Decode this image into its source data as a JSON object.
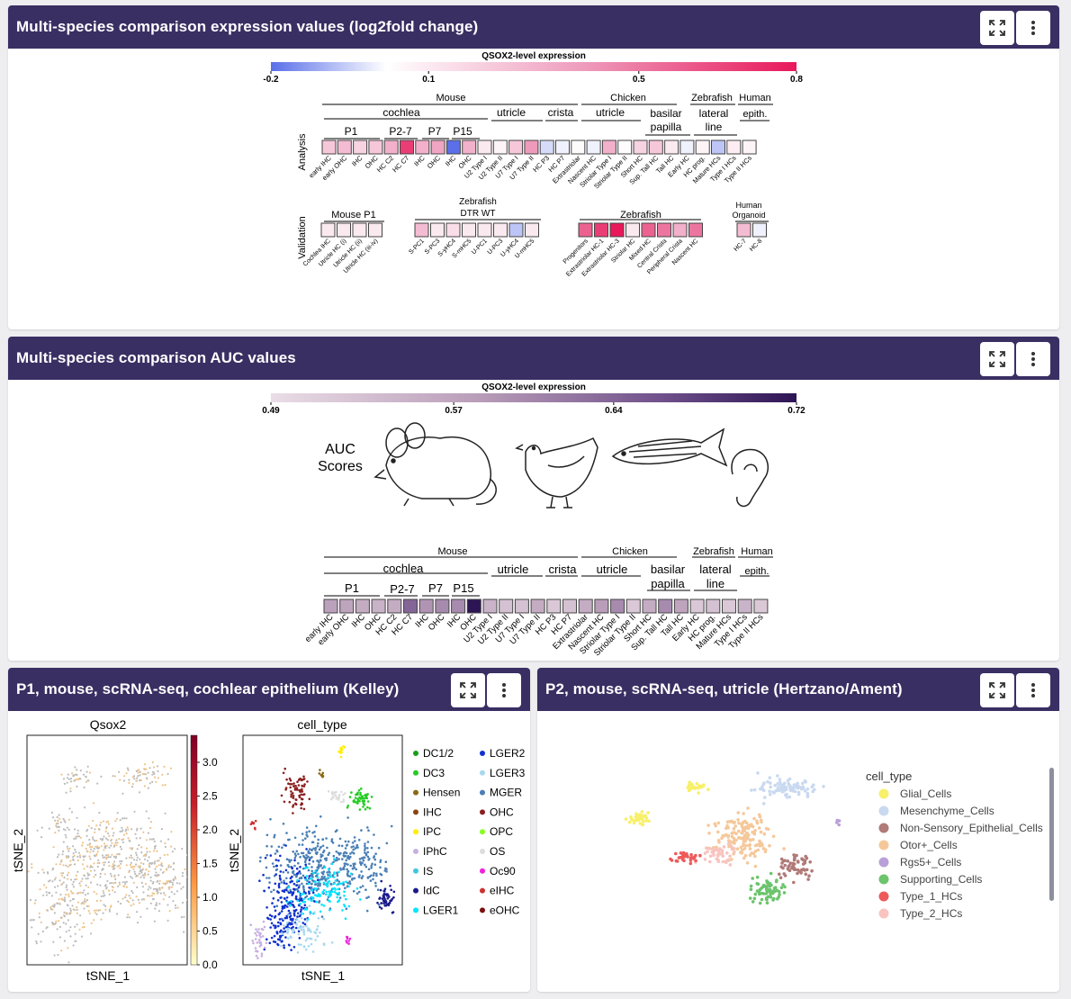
{
  "panels": {
    "expr": {
      "title": "Multi-species comparison expression values (log2fold change)"
    },
    "auc": {
      "title": "Multi-species comparison AUC values"
    },
    "p1": {
      "title": "P1, mouse, scRNA-seq, cochlear epithelium (Kelley)"
    },
    "p2": {
      "title": "P2, mouse, scRNA-seq, utricle (Hertzano/Ament)"
    }
  },
  "buttons": {
    "expand_icon": "expand-icon",
    "menu_icon": "vertical-dots-icon"
  },
  "expr": {
    "colorbar_title": "QSOX2-level expression",
    "colorbar_ticks": [
      "-0.2",
      "0.1",
      "0.5",
      "0.8"
    ],
    "row_label_analysis": "Analysis",
    "row_label_validation": "Validation",
    "groups_top": {
      "mouse": "Mouse",
      "chicken": "Chicken",
      "zebrafish": "Zebrafish",
      "human": "Human"
    },
    "groups_mid": {
      "cochlea": "cochlea",
      "utricle": "utricle",
      "crista": "crista",
      "chicken_utricle": "utricle",
      "basilar": "basilar",
      "papilla": "papilla",
      "lateral": "lateral",
      "line": "line",
      "epith": "epith."
    },
    "groups_age": [
      "P1",
      "P2-7",
      "P7",
      "P15"
    ],
    "analysis_cells": [
      {
        "label": "early IHC",
        "value": 0.25
      },
      {
        "label": "early OHC",
        "value": 0.3
      },
      {
        "label": "IHC",
        "value": 0.2
      },
      {
        "label": "OHC",
        "value": 0.25
      },
      {
        "label": "HC C2",
        "value": 0.35
      },
      {
        "label": "HC C7",
        "value": 0.7
      },
      {
        "label": "IHC",
        "value": 0.35
      },
      {
        "label": "OHC",
        "value": 0.4
      },
      {
        "label": "IHC",
        "value": -0.2
      },
      {
        "label": "OHC",
        "value": 0.35
      },
      {
        "label": "U2 Type I",
        "value": 0.1
      },
      {
        "label": "U2 Type II",
        "value": 0.05
      },
      {
        "label": "U7 Type I",
        "value": 0.25
      },
      {
        "label": "U7 Type II",
        "value": 0.45
      },
      {
        "label": "HC P3",
        "value": -0.05
      },
      {
        "label": "HC P7",
        "value": -0.02
      },
      {
        "label": "Extrastriolar",
        "value": 0.02
      },
      {
        "label": "Nascent HC",
        "value": -0.02
      },
      {
        "label": "Striolar Type I",
        "value": 0.35
      },
      {
        "label": "Striolar Type II",
        "value": 0.02
      },
      {
        "label": "Short HC",
        "value": 0.2
      },
      {
        "label": "Sup. Tall HC",
        "value": 0.25
      },
      {
        "label": "Tall HC",
        "value": 0.1
      },
      {
        "label": "Early HC",
        "value": -0.02
      },
      {
        "label": "HC prog.",
        "value": 0.05
      },
      {
        "label": "Mature HCs",
        "value": -0.08
      },
      {
        "label": "Type I HCs",
        "value": 0.08
      },
      {
        "label": "Type II HCs",
        "value": 0.05
      }
    ],
    "validation_groups": {
      "mouse_p1": "Mouse P1",
      "zebrafish_dtr": "Zebrafish",
      "dtr_wt": "DTR WT",
      "zebrafish": "Zebrafish",
      "human_organoid_1": "Human",
      "human_organoid_2": "Organoid"
    },
    "validation_cells": [
      {
        "label": "Cochlea IHC",
        "value": 0.1
      },
      {
        "label": "Utricle HC (i)",
        "value": 0.1
      },
      {
        "label": "Utricle HC (ii)",
        "value": 0.1
      },
      {
        "label": "Utricle HC (iii-iv)",
        "value": 0.1
      },
      {
        "label": "S-PC1",
        "value": 0.3
      },
      {
        "label": "S-PC3",
        "value": 0.1
      },
      {
        "label": "S-yHC4",
        "value": 0.15
      },
      {
        "label": "S-mHC5",
        "value": 0.1
      },
      {
        "label": "U-PC1",
        "value": 0.1
      },
      {
        "label": "U-PC3",
        "value": 0.1
      },
      {
        "label": "U-yHC4",
        "value": -0.08
      },
      {
        "label": "U-mHC5",
        "value": 0.1
      },
      {
        "label": "Progenitors",
        "value": 0.6
      },
      {
        "label": "Extrastriolar HC-1",
        "value": 0.7
      },
      {
        "label": "Extrastriolar HC-3",
        "value": 0.8
      },
      {
        "label": "Striolar HC",
        "value": 0.1
      },
      {
        "label": "Mixed HC",
        "value": 0.6
      },
      {
        "label": "Central Crista",
        "value": 0.55
      },
      {
        "label": "Peripheral Crista",
        "value": 0.35
      },
      {
        "label": "Nascent HC",
        "value": 0.55
      },
      {
        "label": "HC-7",
        "value": 0.3
      },
      {
        "label": "HC-8",
        "value": -0.02
      }
    ]
  },
  "auc": {
    "colorbar_title": "QSOX2-level expression",
    "colorbar_ticks": [
      "0.49",
      "0.57",
      "0.64",
      "0.72"
    ],
    "scores_line1": "AUC",
    "scores_line2": "Scores",
    "groups_top": {
      "mouse": "Mouse",
      "chicken": "Chicken",
      "zebrafish": "Zebrafish",
      "human": "Human"
    },
    "groups_mid": {
      "cochlea": "cochlea",
      "utricle": "utricle",
      "crista": "crista",
      "chicken_utricle": "utricle",
      "basilar": "basilar",
      "papilla": "papilla",
      "lateral": "lateral",
      "line": "line",
      "epith": "epith."
    },
    "groups_age": [
      "P1",
      "P2-7",
      "P7",
      "P15"
    ],
    "cells": [
      {
        "label": "early IHC",
        "value": 0.575
      },
      {
        "label": "early OHC",
        "value": 0.57
      },
      {
        "label": "IHC",
        "value": 0.56
      },
      {
        "label": "OHC",
        "value": 0.55
      },
      {
        "label": "HC C2",
        "value": 0.56
      },
      {
        "label": "HC C7",
        "value": 0.64
      },
      {
        "label": "IHC",
        "value": 0.59
      },
      {
        "label": "OHC",
        "value": 0.6
      },
      {
        "label": "IHC",
        "value": 0.6
      },
      {
        "label": "OHC",
        "value": 0.72
      },
      {
        "label": "U2 Type I",
        "value": 0.55
      },
      {
        "label": "U2 Type II",
        "value": 0.53
      },
      {
        "label": "U7 Type I",
        "value": 0.53
      },
      {
        "label": "U7 Type II",
        "value": 0.56
      },
      {
        "label": "HC P3",
        "value": 0.52
      },
      {
        "label": "HC P7",
        "value": 0.53
      },
      {
        "label": "Extrastriolar",
        "value": 0.56
      },
      {
        "label": "Nascent HC",
        "value": 0.58
      },
      {
        "label": "Striolar Type I",
        "value": 0.6
      },
      {
        "label": "Striolar Type II",
        "value": 0.52
      },
      {
        "label": "Short HC",
        "value": 0.56
      },
      {
        "label": "Sup. Tall HC",
        "value": 0.6
      },
      {
        "label": "Tall HC",
        "value": 0.57
      },
      {
        "label": "Early HC",
        "value": 0.52
      },
      {
        "label": "HC prog.",
        "value": 0.53
      },
      {
        "label": "Mature HCs",
        "value": 0.52
      },
      {
        "label": "Type I HCs",
        "value": 0.55
      },
      {
        "label": "Type II HCs",
        "value": 0.52
      }
    ]
  },
  "p1": {
    "left_title": "Qsox2",
    "right_title": "cell_type",
    "xlabel": "tSNE_1",
    "ylabel": "tSNE_2",
    "colorbar_ticks": [
      "3.0",
      "2.5",
      "2.0",
      "1.5",
      "1.0",
      "0.5",
      "0.0"
    ],
    "legend_col1": [
      {
        "label": "DC1/2",
        "color": "#1a9e1a"
      },
      {
        "label": "DC3",
        "color": "#22cc22"
      },
      {
        "label": "Hensen",
        "color": "#8b6914"
      },
      {
        "label": "IHC",
        "color": "#8b4513"
      },
      {
        "label": "IPC",
        "color": "#ffee00"
      },
      {
        "label": "IPhC",
        "color": "#c8b0e0"
      },
      {
        "label": "IS",
        "color": "#40c8e0"
      },
      {
        "label": "IdC",
        "color": "#1a1a8c"
      },
      {
        "label": "LGER1",
        "color": "#00e5ff"
      }
    ],
    "legend_col2": [
      {
        "label": "LGER2",
        "color": "#1030d0"
      },
      {
        "label": "LGER3",
        "color": "#a8d8f0"
      },
      {
        "label": "MGER",
        "color": "#4a7fb5"
      },
      {
        "label": "OHC",
        "color": "#8b2020"
      },
      {
        "label": "OPC",
        "color": "#88ff22"
      },
      {
        "label": "OS",
        "color": "#dddddd"
      },
      {
        "label": "Oc90",
        "color": "#ee22dd"
      },
      {
        "label": "eIHC",
        "color": "#cc3333"
      },
      {
        "label": "eOHC",
        "color": "#7a1010"
      }
    ]
  },
  "p2": {
    "legend_title": "cell_type",
    "legend": [
      {
        "label": "Glial_Cells",
        "color": "#f7f06a"
      },
      {
        "label": "Mesenchyme_Cells",
        "color": "#c9d9f0"
      },
      {
        "label": "Non-Sensory_Epithelial_Cells",
        "color": "#b07a78"
      },
      {
        "label": "Otor+_Cells",
        "color": "#f5c89a"
      },
      {
        "label": "Rgs5+_Cells",
        "color": "#b9a0d8"
      },
      {
        "label": "Supporting_Cells",
        "color": "#6cc46c"
      },
      {
        "label": "Type_1_HCs",
        "color": "#ee5a5a"
      },
      {
        "label": "Type_2_HCs",
        "color": "#f8c4c0"
      }
    ]
  }
}
